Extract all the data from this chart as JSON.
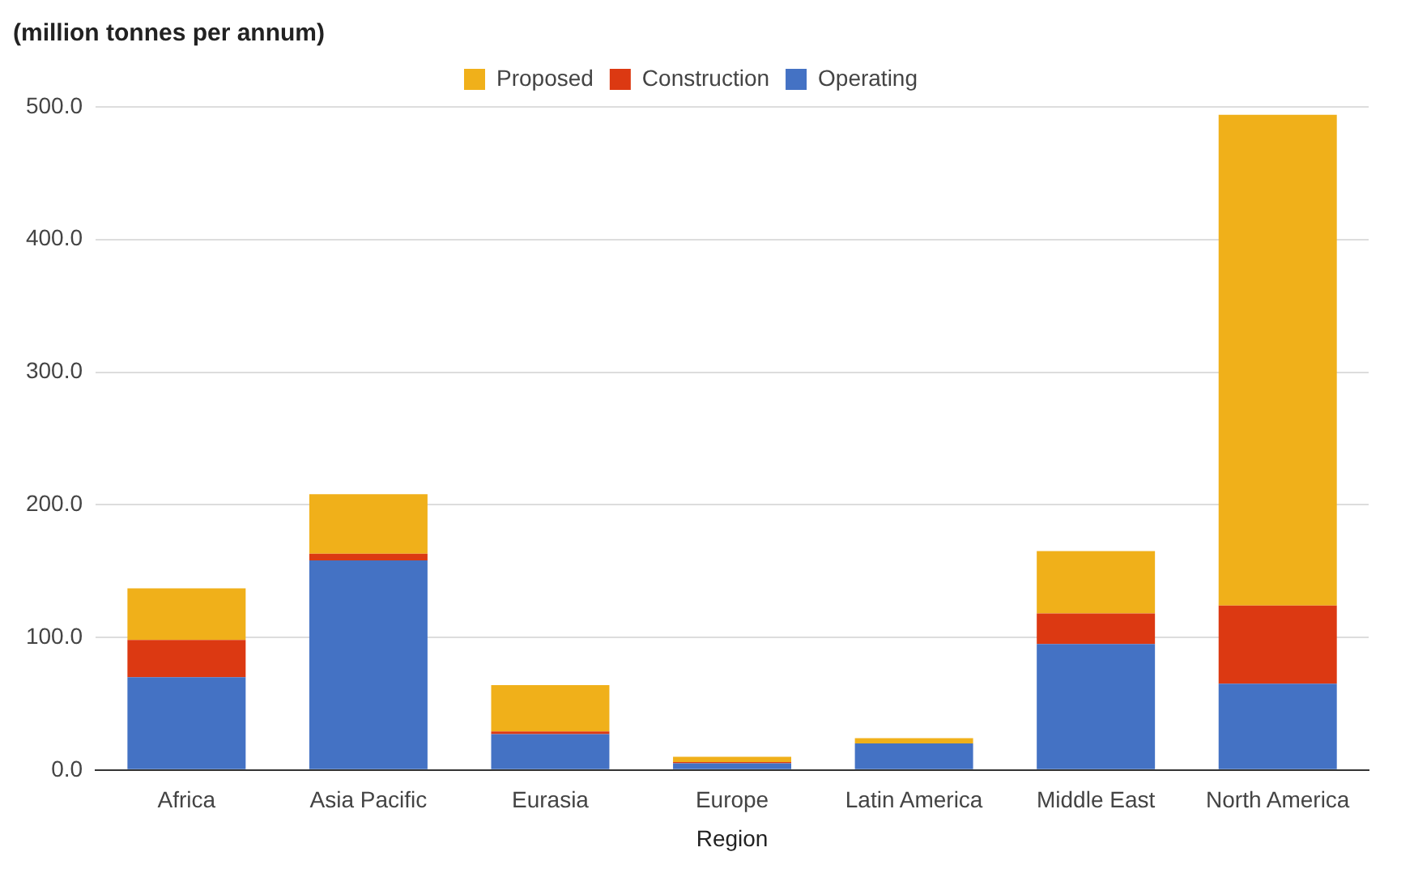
{
  "chart_data": {
    "type": "bar",
    "title": "(million tonnes per annum)",
    "xlabel": "Region",
    "stacked": true,
    "legend": "top",
    "grid": "y",
    "categories": [
      "Africa",
      "Asia Pacific",
      "Eurasia",
      "Europe",
      "Latin America",
      "Middle East",
      "North America"
    ],
    "series": [
      {
        "name": "Operating",
        "color": "#4472c4",
        "values": [
          70,
          158,
          27,
          5,
          20,
          95,
          65
        ]
      },
      {
        "name": "Construction",
        "color": "#dc3912",
        "values": [
          28,
          5,
          2,
          1,
          0,
          23,
          59
        ]
      },
      {
        "name": "Proposed",
        "color": "#f0b01a",
        "values": [
          39,
          45,
          35,
          4,
          4,
          47,
          370
        ]
      }
    ],
    "ylim": [
      0,
      500
    ],
    "yticks": [
      {
        "value": 0,
        "label": "0.0"
      },
      {
        "value": 100,
        "label": "100.0"
      },
      {
        "value": 200,
        "label": "200.0"
      },
      {
        "value": 300,
        "label": "300.0"
      },
      {
        "value": 400,
        "label": "400.0"
      },
      {
        "value": 500,
        "label": "500.0"
      }
    ]
  }
}
